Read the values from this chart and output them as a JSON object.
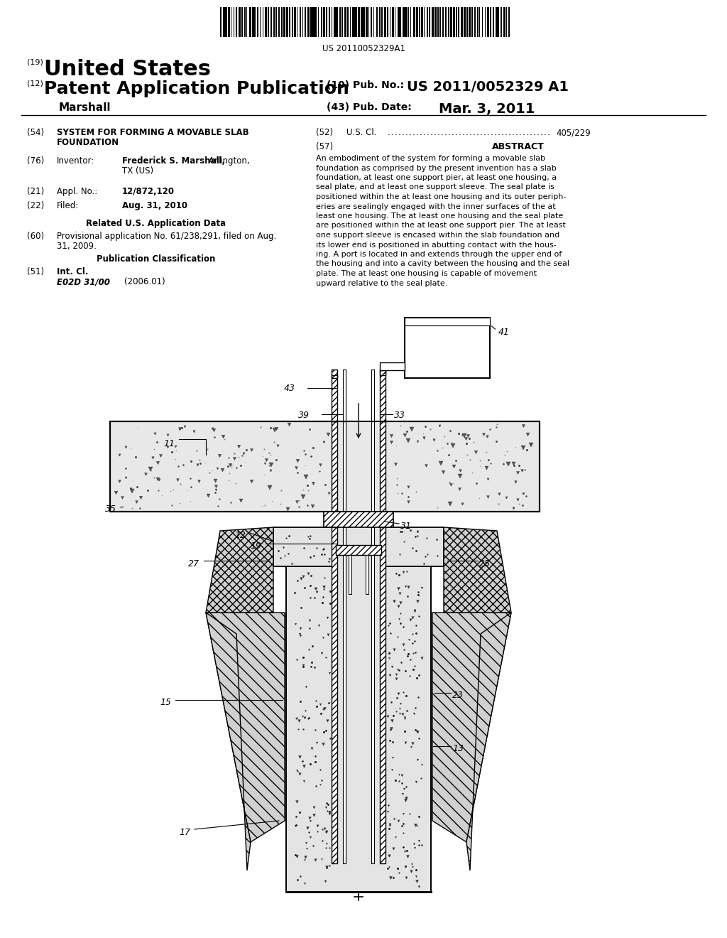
{
  "bg_color": "#ffffff",
  "barcode_text": "US 20110052329A1",
  "line19_label": "United States",
  "line12_label": "Patent Application Publication",
  "author": "Marshall",
  "pub_num_label": "(10) Pub. No.:",
  "pub_num_val": "US 2011/0052329 A1",
  "pub_date_label": "(43) Pub. Date:",
  "pub_date_val": "Mar. 3, 2011",
  "abstract_text": "An embodiment of the system for forming a movable slab\nfoundation as comprised by the present invention has a slab\nfoundation, at least one support pier, at least one housing, a\nseal plate, and at least one support sleeve. The seal plate is\npositioned within the at least one housing and its outer periph-\neries are sealingly engaged with the inner surfaces of the at\nleast one housing. The at least one housing and the seal plate\nare positioned within the at least one support pier. The at least\none support sleeve is encased within the slab foundation and\nits lower end is positioned in abutting contact with the hous-\ning. A port is located in and extends through the upper end of\nthe housing and into a cavity between the housing and the seal\nplate. The at least one housing is capable of movement\nupward relative to the seal plate.",
  "field21_val": "12/872,120",
  "field22_val": "Aug. 31, 2010",
  "field60_text": "Provisional application No. 61/238,291, filed on Aug.\n31, 2009.",
  "field51_class": "E02D 31/00",
  "field51_year": "(2006.01)"
}
